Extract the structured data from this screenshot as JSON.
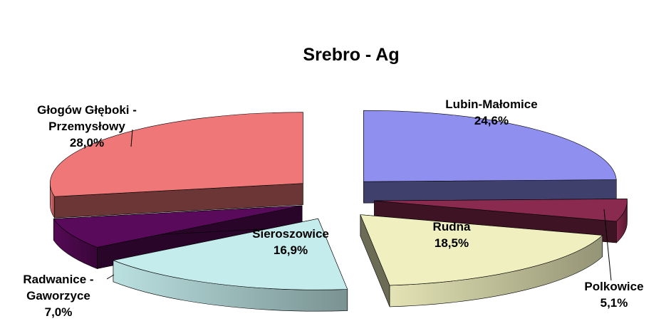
{
  "chart_data": {
    "type": "pie",
    "title": "Srebro - Ag",
    "exploded": true,
    "three_d": true,
    "slices": [
      {
        "label_lines": [
          "Lubin-Małomice",
          "24,6%"
        ],
        "value": 24.6,
        "color": "#8f8fef"
      },
      {
        "label_lines": [
          "Polkowice",
          "5,1%"
        ],
        "value": 5.1,
        "color": "#8a2a4e"
      },
      {
        "label_lines": [
          "Rudna",
          "18,5%"
        ],
        "value": 18.5,
        "color": "#efefbf"
      },
      {
        "label_lines": [
          "Sieroszowice",
          "16,9%"
        ],
        "value": 16.9,
        "color": "#c4ecec"
      },
      {
        "label_lines": [
          "Radwanice -",
          "Gaworzyce",
          "7,0%"
        ],
        "value": 7.0,
        "color": "#5a0a5a"
      },
      {
        "label_lines": [
          "Głogów Głęboki -",
          "Przemysłowy",
          "28,0%"
        ],
        "value": 28.0,
        "color": "#ef7777"
      }
    ]
  }
}
